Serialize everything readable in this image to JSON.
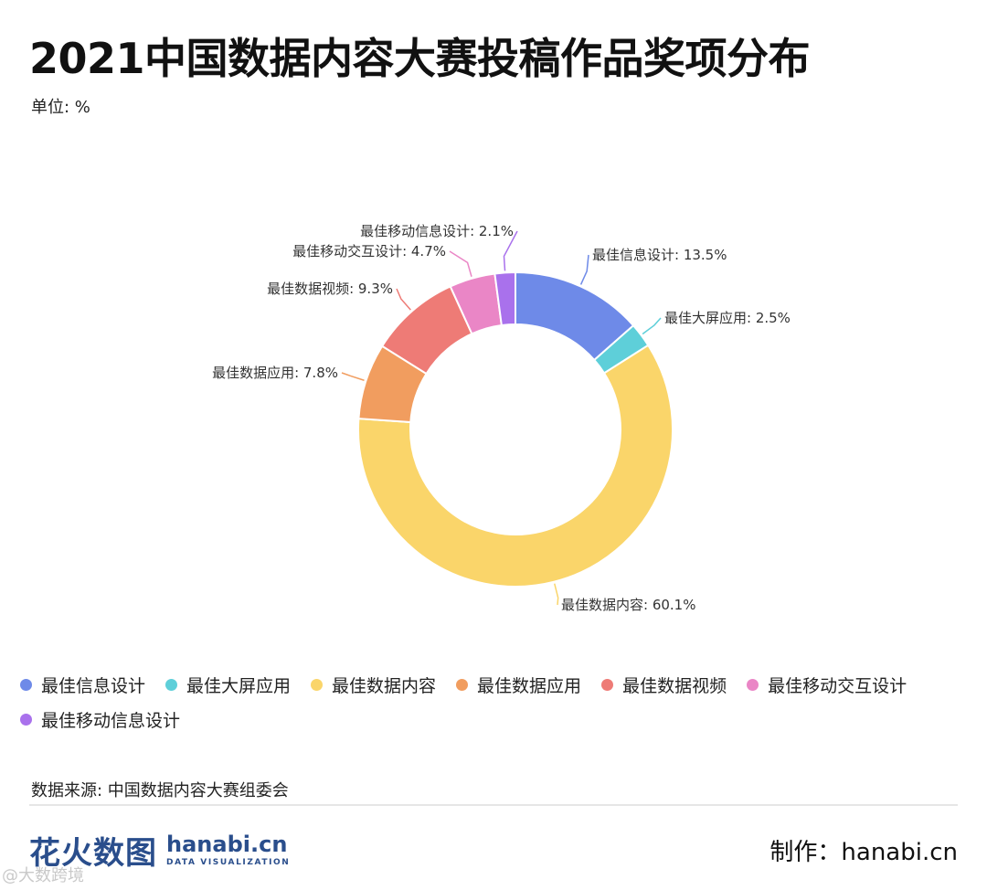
{
  "title": "2021中国数据内容大赛投稿作品奖项分布",
  "unit": "单位: %",
  "source": "数据来源: 中国数据内容大赛组委会",
  "footer": {
    "logo_cn": "花火数图",
    "logo_en": "hanabi.cn",
    "logo_sub": "DATA VISUALIZATION",
    "credit": "制作：hanabi.cn",
    "corner_watermark": "@大数跨境"
  },
  "chart_data": {
    "type": "pie",
    "donut": true,
    "title": "2021中国数据内容大赛投稿作品奖项分布",
    "unit": "%",
    "legend_position": "bottom",
    "categories": [
      "最佳信息设计",
      "最佳大屏应用",
      "最佳数据内容",
      "最佳数据应用",
      "最佳数据视频",
      "最佳移动交互设计",
      "最佳移动信息设计"
    ],
    "values": [
      13.5,
      2.5,
      60.1,
      7.8,
      9.3,
      4.7,
      2.1
    ],
    "colors": [
      "#6e8ae8",
      "#5ecfd9",
      "#fad56a",
      "#f19d5f",
      "#ee7b76",
      "#ea86c6",
      "#a971ec"
    ],
    "labels": [
      "最佳信息设计: 13.5%",
      "最佳大屏应用: 2.5%",
      "最佳数据内容: 60.1%",
      "最佳数据应用: 7.8%",
      "最佳数据视频: 9.3%",
      "最佳移动交互设计: 4.7%",
      "最佳移动信息设计: 2.1%"
    ]
  }
}
